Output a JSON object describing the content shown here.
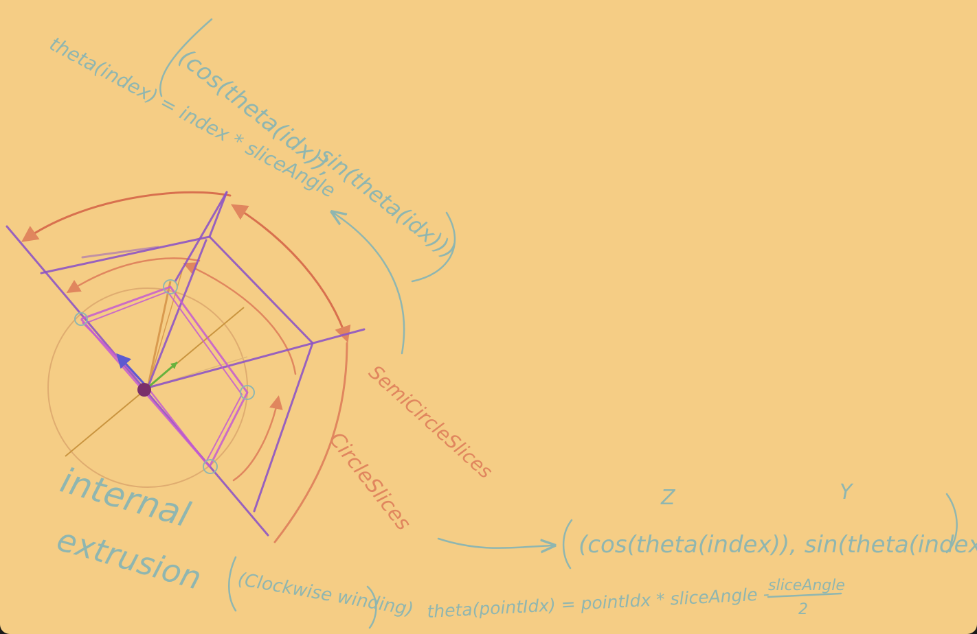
{
  "colors": {
    "paper": "#f5cd85",
    "teal_ink": "#8fb6b0",
    "orange_ink": "#e0865e",
    "red_ink": "#d8704e",
    "purple_ink": "#8e55c4",
    "magenta_ink": "#c45ad0",
    "circle_ink": "#d9a46a",
    "green_ink": "#66b23e",
    "blue_ink": "#5c5ad0"
  },
  "notes": {
    "theta_def": "theta(index) = index * sliceAngle",
    "tuple_open": "(cos(theta(idx)),",
    "tuple_close": "sin(theta(idx)))",
    "semicircle_label": "SemiCircleSlices",
    "circle_label": "CircleSlices",
    "internal": "internal",
    "extrusion": "extrusion",
    "winding": "(Clockwise winding)",
    "z_label": "Z",
    "y_label": "Y",
    "vector_expr": "(cos(theta(index)), sin(theta(index)))",
    "point_theta_lhs": "theta(pointIdx) = pointIdx * sliceAngle -",
    "frac_num": "sliceAngle",
    "frac_den": "2"
  }
}
